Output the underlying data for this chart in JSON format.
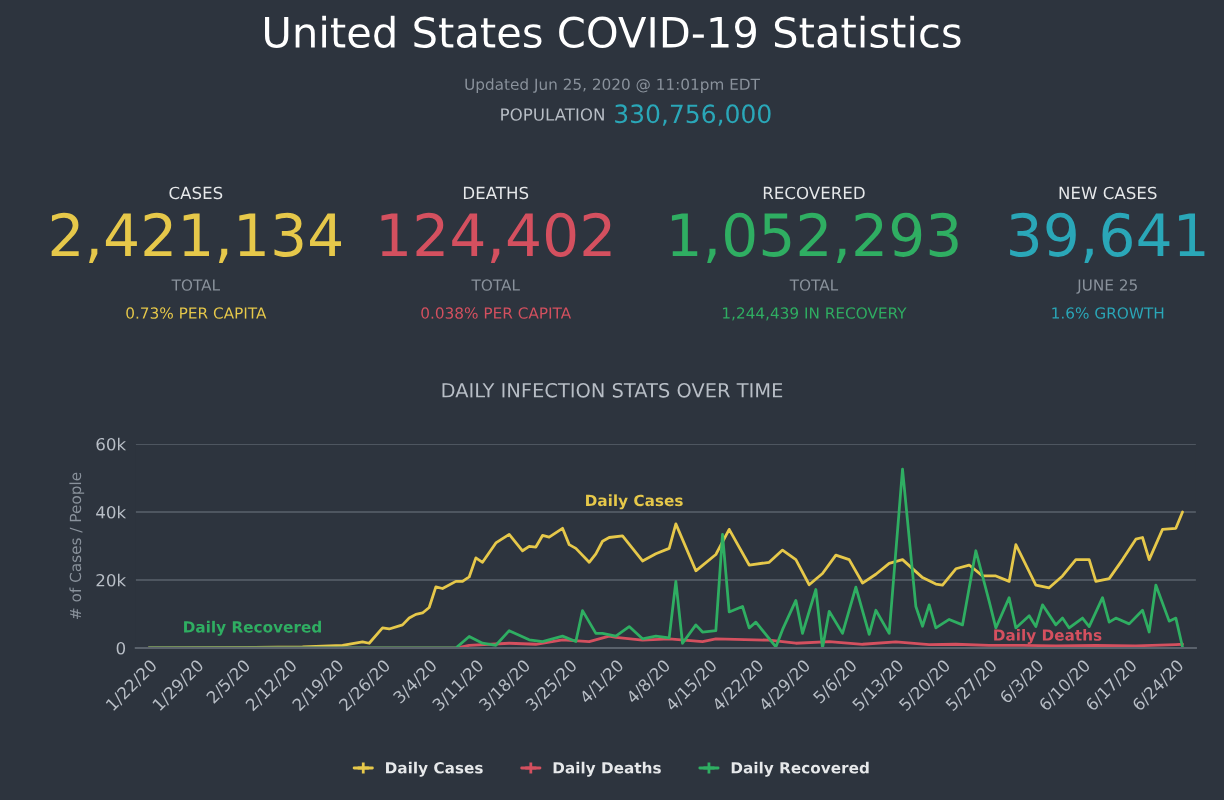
{
  "chart_data": [
    {
      "type": "other",
      "title": "United States COVID-19 Statistics",
      "subtitle": "Updated Jun 25, 2020 @ 11:01pm EDT",
      "colors": [
        "#e6c84a",
        "#d4505f",
        "#2fae62",
        "#2aa7b8"
      ],
      "annotations": [
        "POPULATION",
        "330,756,000",
        "CASES",
        "2,421,134",
        "TOTAL",
        "0.73% PER CAPITA",
        "DEATHS",
        "124,402",
        "TOTAL",
        "0.038% PER CAPITA",
        "RECOVERED",
        "1,052,293",
        "TOTAL",
        "1,244,439 IN RECOVERY",
        "NEW CASES",
        "39,641",
        "JUNE 25",
        "1.6% GROWTH"
      ]
    },
    {
      "type": "line",
      "title": "DAILY INFECTION STATS OVER TIME",
      "ylabel": "# of Cases / People",
      "xlim": [
        "2020-01-20",
        "2020-06-27"
      ],
      "ylim": [
        0,
        60
      ],
      "yticks": [
        0,
        {
          "value": 20,
          "label": "20k"
        },
        {
          "value": 40,
          "label": "40k"
        },
        {
          "value": 60,
          "label": "60k"
        }
      ],
      "xticks": [
        {
          "value": "2020-01-22",
          "label": "1/22/20"
        },
        {
          "value": "2020-01-29",
          "label": "1/29/20"
        },
        {
          "value": "2020-02-05",
          "label": "2/5/20"
        },
        {
          "value": "2020-02-12",
          "label": "2/12/20"
        },
        {
          "value": "2020-02-19",
          "label": "2/19/20"
        },
        {
          "value": "2020-02-26",
          "label": "2/26/20"
        },
        {
          "value": "2020-03-04",
          "label": "3/4/20"
        },
        {
          "value": "2020-03-11",
          "label": "3/11/20"
        },
        {
          "value": "2020-03-18",
          "label": "3/18/20"
        },
        {
          "value": "2020-03-25",
          "label": "3/25/20"
        },
        {
          "value": "2020-04-01",
          "label": "4/1/20"
        },
        {
          "value": "2020-04-08",
          "label": "4/8/20"
        },
        {
          "value": "2020-04-15",
          "label": "4/15/20"
        },
        {
          "value": "2020-04-22",
          "label": "4/22/20"
        },
        {
          "value": "2020-04-29",
          "label": "4/29/20"
        },
        {
          "value": "2020-05-06",
          "label": "5/6/20"
        },
        {
          "value": "2020-05-13",
          "label": "5/13/20"
        },
        {
          "value": "2020-05-20",
          "label": "5/20/20"
        },
        {
          "value": "2020-05-27",
          "label": "5/27/20"
        },
        {
          "value": "2020-06-03",
          "label": "6/3/20"
        },
        {
          "value": "2020-06-10",
          "label": "6/10/20"
        },
        {
          "value": "2020-06-17",
          "label": "6/17/20"
        },
        {
          "value": "2020-06-24",
          "label": "6/24/20"
        }
      ],
      "grid": "y",
      "legend": "bottom",
      "marker": "none",
      "line_style": "solid",
      "series": [
        {
          "name": "Daily Cases",
          "color": "#e6c84a",
          "x": [
            "2020-01-22",
            "2020-02-14",
            "2020-02-20",
            "2020-02-23",
            "2020-02-24",
            "2020-02-26",
            "2020-02-27",
            "2020-02-29",
            "2020-03-01",
            "2020-03-02",
            "2020-03-03",
            "2020-03-04",
            "2020-03-05",
            "2020-03-06",
            "2020-03-08",
            "2020-03-09",
            "2020-03-10",
            "2020-03-11",
            "2020-03-12",
            "2020-03-14",
            "2020-03-16",
            "2020-03-18",
            "2020-03-19",
            "2020-03-20",
            "2020-03-21",
            "2020-03-22",
            "2020-03-24",
            "2020-03-25",
            "2020-03-26",
            "2020-03-28",
            "2020-03-29",
            "2020-03-30",
            "2020-03-31",
            "2020-04-02",
            "2020-04-05",
            "2020-04-07",
            "2020-04-09",
            "2020-04-10",
            "2020-04-13",
            "2020-04-16",
            "2020-04-18",
            "2020-04-21",
            "2020-04-24",
            "2020-04-26",
            "2020-04-28",
            "2020-04-30",
            "2020-05-02",
            "2020-05-04",
            "2020-05-06",
            "2020-05-08",
            "2020-05-10",
            "2020-05-12",
            "2020-05-14",
            "2020-05-17",
            "2020-05-19",
            "2020-05-20",
            "2020-05-22",
            "2020-05-24",
            "2020-05-26",
            "2020-05-28",
            "2020-05-30",
            "2020-05-31",
            "2020-06-03",
            "2020-06-05",
            "2020-06-07",
            "2020-06-09",
            "2020-06-11",
            "2020-06-12",
            "2020-06-14",
            "2020-06-16",
            "2020-06-18",
            "2020-06-19",
            "2020-06-20",
            "2020-06-22",
            "2020-06-24",
            "2020-06-25"
          ],
          "values": [
            0,
            0.3,
            0.8,
            1.8,
            1.4,
            5.9,
            5.6,
            6.8,
            8.8,
            9.9,
            10.3,
            11.9,
            18.0,
            17.5,
            19.6,
            19.6,
            20.9,
            26.5,
            25.2,
            30.9,
            33.4,
            28.6,
            29.9,
            29.7,
            33.1,
            32.6,
            35.2,
            30.4,
            29.3,
            25.2,
            27.7,
            31.4,
            32.5,
            33.0,
            25.6,
            27.7,
            29.3,
            36.5,
            22.7,
            27.5,
            34.9,
            24.4,
            25.2,
            28.8,
            26.0,
            18.6,
            21.9,
            27.3,
            26.0,
            19.1,
            21.7,
            24.9,
            26.0,
            20.7,
            18.8,
            18.5,
            23.3,
            24.4,
            21.2,
            21.2,
            19.6,
            30.4,
            18.5,
            17.7,
            21.2,
            26.0,
            26.0,
            19.6,
            20.4,
            26.0,
            32.0,
            32.5,
            26.0,
            34.9,
            35.2,
            40.0
          ]
        },
        {
          "name": "Daily Deaths",
          "color": "#d4505f",
          "x": [
            "2020-01-22",
            "2020-03-08",
            "2020-03-10",
            "2020-03-16",
            "2020-03-20",
            "2020-03-24",
            "2020-03-28",
            "2020-03-31",
            "2020-04-01",
            "2020-04-05",
            "2020-04-09",
            "2020-04-14",
            "2020-04-16",
            "2020-04-24",
            "2020-04-28",
            "2020-05-03",
            "2020-05-08",
            "2020-05-13",
            "2020-05-18",
            "2020-05-22",
            "2020-05-27",
            "2020-06-01",
            "2020-06-06",
            "2020-06-12",
            "2020-06-18",
            "2020-06-24",
            "2020-06-25"
          ],
          "values": [
            0,
            0,
            0.8,
            1.4,
            1.1,
            2.4,
            1.9,
            3.5,
            3.1,
            2.3,
            2.7,
            1.9,
            2.7,
            2.3,
            1.4,
            1.9,
            1.1,
            1.8,
            1.0,
            1.1,
            0.8,
            0.8,
            0.6,
            0.8,
            0.6,
            1.0,
            1.1
          ]
        },
        {
          "name": "Daily Recovered",
          "color": "#2fae62",
          "x": [
            "2020-01-22",
            "2020-03-08",
            "2020-03-10",
            "2020-03-12",
            "2020-03-14",
            "2020-03-16",
            "2020-03-19",
            "2020-03-21",
            "2020-03-24",
            "2020-03-26",
            "2020-03-27",
            "2020-03-29",
            "2020-03-30",
            "2020-04-01",
            "2020-04-03",
            "2020-04-05",
            "2020-04-07",
            "2020-04-09",
            "2020-04-10",
            "2020-04-11",
            "2020-04-13",
            "2020-04-14",
            "2020-04-16",
            "2020-04-17",
            "2020-04-18",
            "2020-04-20",
            "2020-04-21",
            "2020-04-22",
            "2020-04-25",
            "2020-04-26",
            "2020-04-28",
            "2020-04-29",
            "2020-05-01",
            "2020-05-02",
            "2020-05-03",
            "2020-05-05",
            "2020-05-07",
            "2020-05-09",
            "2020-05-10",
            "2020-05-12",
            "2020-05-14",
            "2020-05-16",
            "2020-05-17",
            "2020-05-18",
            "2020-05-19",
            "2020-05-21",
            "2020-05-23",
            "2020-05-25",
            "2020-05-27",
            "2020-05-28",
            "2020-05-30",
            "2020-05-31",
            "2020-06-02",
            "2020-06-03",
            "2020-06-04",
            "2020-06-06",
            "2020-06-07",
            "2020-06-08",
            "2020-06-10",
            "2020-06-11",
            "2020-06-13",
            "2020-06-14",
            "2020-06-15",
            "2020-06-17",
            "2020-06-19",
            "2020-06-20",
            "2020-06-21",
            "2020-06-23",
            "2020-06-24",
            "2020-06-25"
          ],
          "values": [
            0,
            0,
            3.4,
            1.4,
            0.8,
            5.1,
            2.4,
            1.9,
            3.5,
            1.9,
            11.0,
            4.3,
            4.3,
            3.5,
            6.3,
            2.7,
            3.5,
            3.0,
            19.6,
            1.4,
            6.8,
            4.7,
            5.1,
            33.4,
            10.6,
            12.2,
            5.9,
            7.6,
            0.3,
            5.4,
            14.0,
            4.3,
            17.2,
            0,
            10.8,
            4.3,
            17.9,
            4.0,
            11.1,
            4.3,
            52.6,
            12.2,
            6.4,
            12.7,
            5.9,
            8.4,
            6.8,
            28.6,
            13.7,
            5.9,
            14.8,
            5.9,
            9.5,
            6.3,
            12.7,
            6.8,
            8.8,
            5.9,
            8.8,
            6.3,
            14.8,
            7.6,
            8.8,
            7.1,
            11.1,
            4.7,
            18.5,
            7.9,
            8.8,
            0.3
          ]
        }
      ]
    }
  ]
}
